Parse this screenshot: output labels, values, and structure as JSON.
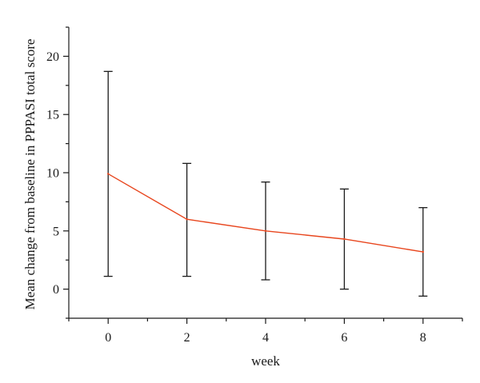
{
  "chart_data": {
    "type": "line",
    "title": "",
    "xlabel": "week",
    "ylabel": "Mean change from baseline in PPPASI total score",
    "xlim": [
      -1,
      9
    ],
    "ylim": [
      -2.5,
      22.5
    ],
    "xticks": [
      0,
      2,
      4,
      6,
      8
    ],
    "yticks": [
      0,
      5,
      10,
      15,
      20
    ],
    "grid": false,
    "legend": "none",
    "series": [
      {
        "color": "#e8461e",
        "x": [
          0,
          2,
          4,
          6,
          8
        ],
        "y": [
          9.9,
          6.0,
          5.0,
          4.3,
          3.2
        ],
        "error_low": [
          1.1,
          1.1,
          0.8,
          0.0,
          -0.6
        ],
        "error_high": [
          18.7,
          10.8,
          9.2,
          8.6,
          7.0
        ]
      }
    ]
  }
}
